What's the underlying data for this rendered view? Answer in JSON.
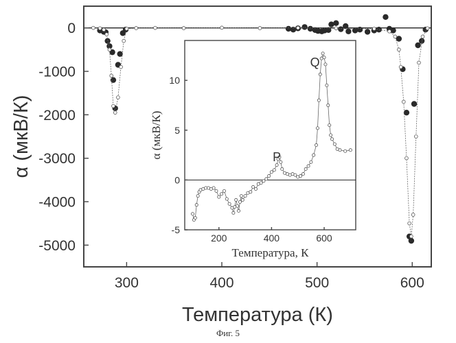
{
  "caption": "Фиг. 5",
  "chart_data": [
    {
      "type": "scatter",
      "xlabel": "Температура (К)",
      "ylabel": "α (мкВ/К)",
      "xlim": [
        255,
        620
      ],
      "ylim": [
        -5500,
        500
      ],
      "xticks": [
        300,
        400,
        500,
        600
      ],
      "yticks": [
        0,
        -1000,
        -2000,
        -3000,
        -4000,
        -5000
      ],
      "reference_line_y": 0,
      "series": [
        {
          "marker": "filled-circle",
          "x": [
            272,
            276,
            278,
            280,
            282,
            285,
            286,
            288,
            291,
            293,
            296,
            299,
            470,
            475,
            480,
            487,
            493,
            498,
            501,
            505,
            508,
            512,
            515,
            520,
            525,
            530,
            533,
            540,
            545,
            553,
            560,
            565,
            572,
            576,
            580,
            586,
            590,
            594,
            597,
            599,
            602,
            606,
            610,
            614
          ],
          "y": [
            -60,
            -90,
            -100,
            -300,
            -420,
            -560,
            -1200,
            -1850,
            -850,
            -600,
            -120,
            -40,
            -20,
            -40,
            -10,
            20,
            -20,
            -50,
            -70,
            -80,
            -60,
            -50,
            80,
            110,
            -30,
            40,
            -80,
            -60,
            -40,
            -90,
            -60,
            -40,
            250,
            -20,
            -60,
            -250,
            -950,
            -1950,
            -4800,
            -4900,
            -1750,
            -400,
            -300,
            -40
          ]
        },
        {
          "marker": "open-circle-line",
          "x": [
            265,
            272,
            276,
            279,
            282,
            284,
            286,
            288,
            291,
            294,
            297,
            300,
            310,
            330,
            360,
            400,
            440,
            480,
            520,
            560,
            576,
            582,
            586,
            588,
            591,
            594,
            597,
            599,
            601,
            604,
            607,
            611,
            616
          ],
          "y": [
            0,
            -10,
            -40,
            -150,
            -500,
            -1100,
            -1800,
            -1950,
            -1600,
            -900,
            -300,
            -20,
            -5,
            0,
            -5,
            5,
            -5,
            0,
            -10,
            -20,
            -80,
            -200,
            -500,
            -900,
            -1700,
            -3000,
            -4500,
            -4800,
            -4300,
            -2500,
            -800,
            -200,
            -10
          ]
        }
      ]
    },
    {
      "type": "line",
      "xlabel": "Температура, К",
      "ylabel": "α (мкВ/К)",
      "xlim": [
        70,
        720
      ],
      "ylim": [
        -5,
        14
      ],
      "xticks": [
        200,
        400,
        600
      ],
      "yticks": [
        -5,
        0,
        5,
        10
      ],
      "reference_line_y": 0,
      "annotations": [
        {
          "text": "P",
          "x": 420,
          "y": 1.9
        },
        {
          "text": "Q",
          "x": 565,
          "y": 11.4
        }
      ],
      "series": [
        {
          "marker": "open-circle-line",
          "x": [
            100,
            105,
            110,
            115,
            120,
            125,
            130,
            140,
            150,
            160,
            170,
            180,
            190,
            200,
            210,
            220,
            230,
            240,
            250,
            255,
            260,
            265,
            270,
            275,
            280,
            285,
            290,
            300,
            310,
            320,
            330,
            340,
            350,
            360,
            370,
            380,
            390,
            400,
            410,
            420,
            425,
            430,
            435,
            440,
            450,
            460,
            470,
            480,
            490,
            500,
            510,
            520,
            530,
            540,
            550,
            560,
            570,
            575,
            580,
            585,
            590,
            595,
            600,
            605,
            610,
            615,
            620,
            625,
            630,
            640,
            650,
            660,
            680,
            700
          ],
          "y": [
            -3.4,
            -4.0,
            -3.8,
            -2.5,
            -1.6,
            -1.2,
            -1.0,
            -0.9,
            -0.8,
            -0.8,
            -0.9,
            -0.8,
            -1.1,
            -1.7,
            -1.4,
            -1.1,
            -1.9,
            -2.4,
            -2.8,
            -3.3,
            -2.7,
            -2.0,
            -2.6,
            -3.1,
            -2.2,
            -1.6,
            -2.0,
            -1.6,
            -1.3,
            -1.2,
            -0.7,
            -0.9,
            -0.4,
            -0.3,
            -0.1,
            0.1,
            0.4,
            0.8,
            1.0,
            1.5,
            2.1,
            2.3,
            1.8,
            1.1,
            0.7,
            0.6,
            0.5,
            0.6,
            0.5,
            0.3,
            0.4,
            0.6,
            1.1,
            1.4,
            1.8,
            2.5,
            3.5,
            5.2,
            8.0,
            10.6,
            12.2,
            12.7,
            12.3,
            11.6,
            9.5,
            7.5,
            5.5,
            4.5,
            4.1,
            3.6,
            3.1,
            3.0,
            2.9,
            3.0
          ]
        }
      ]
    }
  ]
}
